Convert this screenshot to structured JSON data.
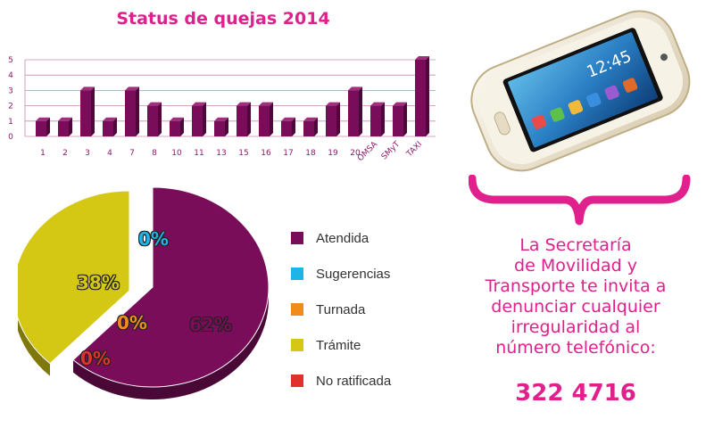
{
  "chart_data": [
    {
      "type": "bar",
      "title": "Status de quejas 2014",
      "categories": [
        "1",
        "2",
        "3",
        "4",
        "7",
        "8",
        "10",
        "11",
        "13",
        "15",
        "16",
        "17",
        "18",
        "19",
        "20",
        "OMSA",
        "SMyT",
        "TAXI"
      ],
      "values": [
        1,
        1,
        3,
        1,
        3,
        2,
        1,
        2,
        1,
        2,
        2,
        1,
        1,
        2,
        3,
        2,
        2,
        5
      ],
      "ylim": [
        0,
        5
      ],
      "yticks": [
        "0",
        "1",
        "2",
        "3",
        "4",
        "5"
      ],
      "grid": true,
      "colors": {
        "bar": "#7a0d5a",
        "bar_side": "#4e073a",
        "bar_top": "#a0307e"
      }
    },
    {
      "type": "pie",
      "slices": [
        {
          "name": "Atendida",
          "value": 62,
          "label": "62%",
          "color": "#7a0d5a"
        },
        {
          "name": "Sugerencias",
          "value": 0,
          "label": "0%",
          "color": "#1fb4e6"
        },
        {
          "name": "Turnada",
          "value": 0,
          "label": "0%",
          "color": "#f08c1c"
        },
        {
          "name": "Trámite",
          "value": 38,
          "label": "38%",
          "color": "#d4c814"
        },
        {
          "name": "No ratificada",
          "value": 0,
          "label": "0%",
          "color": "#e0312c"
        }
      ],
      "legend_position": "right"
    }
  ],
  "invitation": {
    "lines": [
      "La Secretaría",
      "de Movilidad y",
      "Transporte te invita a",
      "denunciar cualquier",
      "irregularidad al",
      "número telefónico:"
    ],
    "phone_number": "322 4716"
  },
  "phone_image": {
    "icon": "smartphone-icon"
  },
  "colors": {
    "accent": "#e0208c"
  }
}
